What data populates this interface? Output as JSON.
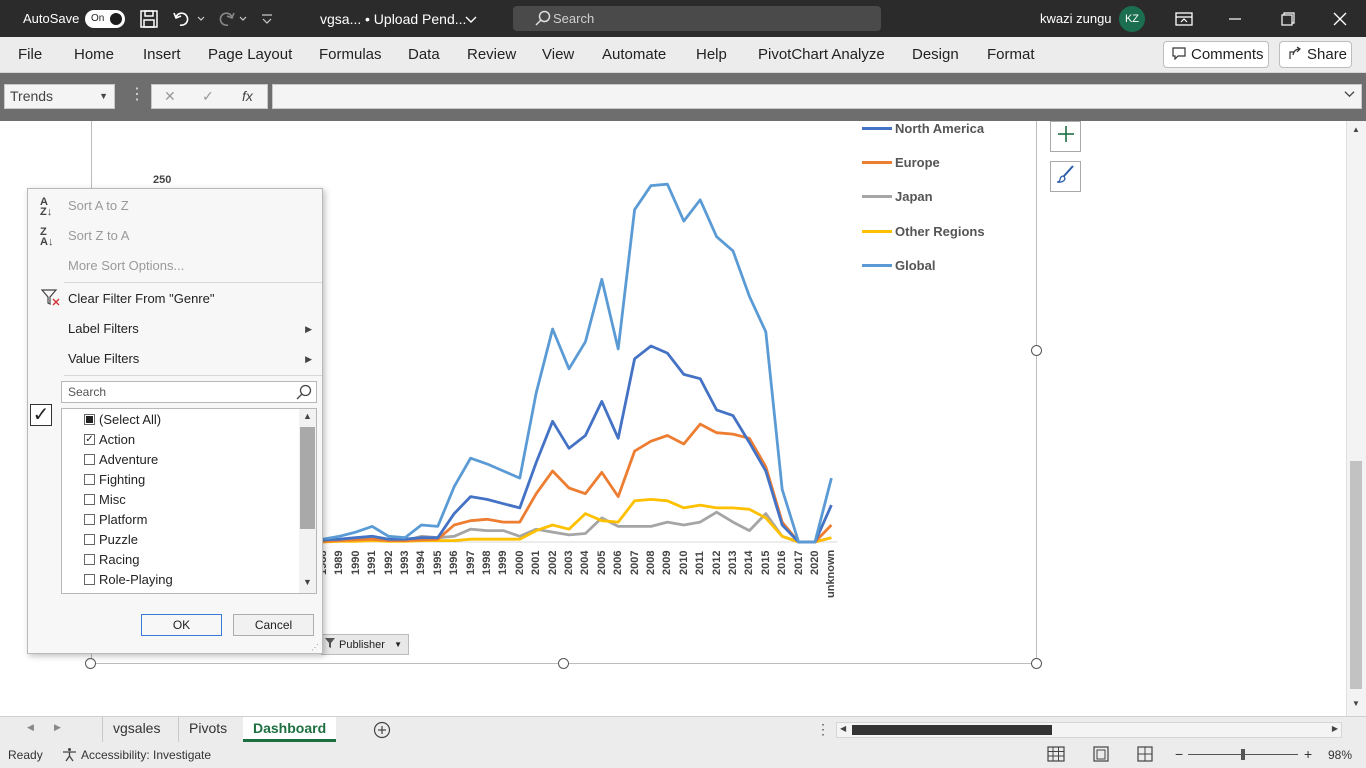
{
  "titlebar": {
    "autosave_label": "AutoSave",
    "autosave_state": "On",
    "doc_name": "vgsa...",
    "upload_status": "• Upload Pend...",
    "search_placeholder": "Search",
    "user_name": "kwazi zungu",
    "user_initials": "KZ"
  },
  "ribbon": {
    "tabs": [
      "File",
      "Home",
      "Insert",
      "Page Layout",
      "Formulas",
      "Data",
      "Review",
      "View",
      "Automate",
      "Help",
      "PivotChart Analyze",
      "Design",
      "Format"
    ],
    "comments_label": "Comments",
    "share_label": "Share"
  },
  "formula_bar": {
    "name_box": "Trends",
    "fx": "fx"
  },
  "chart": {
    "y_top_label": "250",
    "publisher_button": "Publisher",
    "legend": [
      {
        "name": "North America",
        "color": "#4472c4"
      },
      {
        "name": "Europe",
        "color": "#ed7d31"
      },
      {
        "name": "Japan",
        "color": "#a5a5a5"
      },
      {
        "name": "Other Regions",
        "color": "#ffc000"
      },
      {
        "name": "Global",
        "color": "#5b9bd5"
      }
    ]
  },
  "chart_data": {
    "type": "line",
    "x": [
      "1988",
      "1989",
      "1990",
      "1991",
      "1992",
      "1993",
      "1994",
      "1995",
      "1996",
      "1997",
      "1998",
      "1999",
      "2000",
      "2001",
      "2002",
      "2003",
      "2004",
      "2005",
      "2006",
      "2007",
      "2008",
      "2009",
      "2010",
      "2011",
      "2012",
      "2013",
      "2014",
      "2015",
      "2016",
      "2017",
      "2020",
      "unknown"
    ],
    "y_tick_visible": "250",
    "series": [
      {
        "name": "North America",
        "color": "#4472c4",
        "values": [
          1.5,
          2,
          3,
          4,
          2,
          2,
          3,
          3,
          20,
          32,
          30,
          27,
          24,
          56,
          85,
          66,
          75,
          99,
          73,
          129,
          138,
          133,
          118,
          115,
          93,
          89,
          70,
          50,
          12,
          0,
          0,
          26
        ]
      },
      {
        "name": "Europe",
        "color": "#ed7d31",
        "values": [
          0.5,
          1,
          1.5,
          2,
          1,
          1,
          1.5,
          2,
          12,
          15,
          16,
          14,
          14,
          34,
          50,
          38,
          34,
          49,
          32,
          64,
          71,
          75,
          69,
          83,
          77,
          76,
          73,
          53,
          14,
          0,
          0,
          12
        ]
      },
      {
        "name": "Japan",
        "color": "#a5a5a5",
        "values": [
          0.5,
          1,
          1,
          2,
          1,
          1,
          4,
          3,
          4,
          9,
          8,
          8,
          4,
          9,
          7,
          5,
          6,
          17,
          11,
          11,
          11,
          14,
          12,
          14,
          21,
          14,
          8,
          20,
          4,
          0,
          0,
          3
        ]
      },
      {
        "name": "Other Regions",
        "color": "#ffc000",
        "values": [
          0,
          0.5,
          0.5,
          1,
          0.5,
          0.5,
          1,
          1,
          1,
          2,
          2,
          2,
          2,
          8,
          12,
          9,
          20,
          15,
          14,
          29,
          30,
          29,
          24,
          26,
          24,
          24,
          23,
          17,
          4,
          0,
          0,
          3
        ]
      },
      {
        "name": "Global",
        "color": "#5b9bd5",
        "values": [
          2,
          4,
          7,
          11,
          4,
          3,
          12,
          11,
          39,
          59,
          55,
          50,
          45,
          105,
          150,
          122,
          141,
          185,
          136,
          234,
          251,
          252,
          226,
          241,
          215,
          205,
          173,
          148,
          37,
          0,
          0,
          45
        ]
      }
    ]
  },
  "filter_popup": {
    "sort_az": "Sort A to Z",
    "sort_za": "Sort Z to A",
    "more_sort": "More Sort Options...",
    "clear_filter": "Clear Filter From \"Genre\"",
    "label_filters": "Label Filters",
    "value_filters": "Value Filters",
    "search_placeholder": "Search",
    "items": [
      {
        "label": "(Select All)",
        "state": "partial"
      },
      {
        "label": "Action",
        "state": "checked"
      },
      {
        "label": "Adventure",
        "state": "unchecked"
      },
      {
        "label": "Fighting",
        "state": "unchecked"
      },
      {
        "label": "Misc",
        "state": "unchecked"
      },
      {
        "label": "Platform",
        "state": "unchecked"
      },
      {
        "label": "Puzzle",
        "state": "unchecked"
      },
      {
        "label": "Racing",
        "state": "unchecked"
      },
      {
        "label": "Role-Playing",
        "state": "unchecked"
      }
    ],
    "ok_label": "OK",
    "cancel_label": "Cancel"
  },
  "sheet_tabs": {
    "tabs": [
      "vgsales",
      "Pivots",
      "Dashboard"
    ],
    "active": "Dashboard"
  },
  "status": {
    "ready": "Ready",
    "accessibility": "Accessibility: Investigate",
    "zoom": "98%"
  }
}
